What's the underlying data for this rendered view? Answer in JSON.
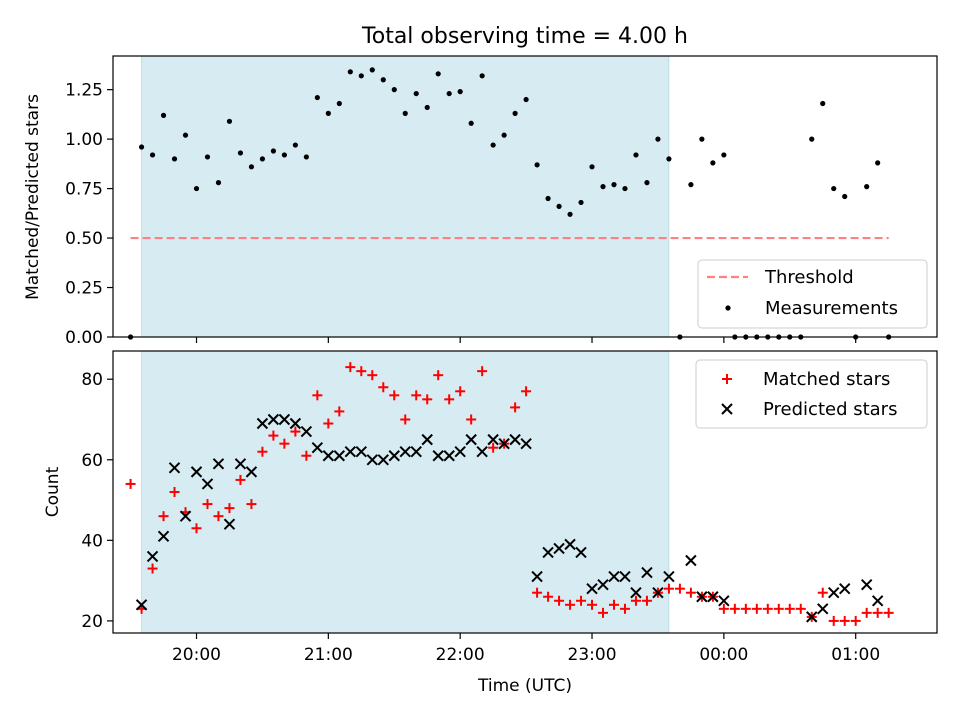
{
  "title": "Total observing time = 4.00 h",
  "chart_data": [
    {
      "panel": "top",
      "type": "scatter",
      "ylabel": "Matched/Predicted stars",
      "ylim": [
        0,
        1.42
      ],
      "xlim": [
        "19:22",
        "01:37"
      ],
      "yticks": [
        0.0,
        0.25,
        0.5,
        0.75,
        1.0,
        1.25
      ],
      "ytick_labels": [
        "0.00",
        "0.25",
        "0.50",
        "0.75",
        "1.00",
        "1.25"
      ],
      "highlight_span": {
        "start": "19:35",
        "end": "23:35",
        "color": "#add8e6"
      },
      "threshold": {
        "name": "Threshold",
        "value": 0.5,
        "x_start": "19:30",
        "x_end": "01:15",
        "color": "#ff8080"
      },
      "legend": {
        "position": "lower right",
        "entries": [
          "Threshold",
          "Measurements"
        ]
      },
      "series": [
        {
          "name": "Measurements",
          "color": "#000000",
          "marker": "dot",
          "points": [
            [
              "19:30",
              0.0
            ],
            [
              "19:35",
              0.96
            ],
            [
              "19:40",
              0.92
            ],
            [
              "19:45",
              1.12
            ],
            [
              "19:50",
              0.9
            ],
            [
              "19:55",
              1.02
            ],
            [
              "20:00",
              0.75
            ],
            [
              "20:05",
              0.91
            ],
            [
              "20:10",
              0.78
            ],
            [
              "20:15",
              1.09
            ],
            [
              "20:20",
              0.93
            ],
            [
              "20:25",
              0.86
            ],
            [
              "20:30",
              0.9
            ],
            [
              "20:35",
              0.94
            ],
            [
              "20:40",
              0.92
            ],
            [
              "20:45",
              0.97
            ],
            [
              "20:50",
              0.91
            ],
            [
              "20:55",
              1.21
            ],
            [
              "21:00",
              1.13
            ],
            [
              "21:05",
              1.18
            ],
            [
              "21:10",
              1.34
            ],
            [
              "21:15",
              1.32
            ],
            [
              "21:20",
              1.35
            ],
            [
              "21:25",
              1.3
            ],
            [
              "21:30",
              1.25
            ],
            [
              "21:35",
              1.13
            ],
            [
              "21:40",
              1.23
            ],
            [
              "21:45",
              1.16
            ],
            [
              "21:50",
              1.33
            ],
            [
              "21:55",
              1.23
            ],
            [
              "22:00",
              1.24
            ],
            [
              "22:05",
              1.08
            ],
            [
              "22:10",
              1.32
            ],
            [
              "22:15",
              0.97
            ],
            [
              "22:20",
              1.02
            ],
            [
              "22:25",
              1.13
            ],
            [
              "22:30",
              1.2
            ],
            [
              "22:35",
              0.87
            ],
            [
              "22:40",
              0.7
            ],
            [
              "22:45",
              0.66
            ],
            [
              "22:50",
              0.62
            ],
            [
              "22:55",
              0.68
            ],
            [
              "23:00",
              0.86
            ],
            [
              "23:05",
              0.76
            ],
            [
              "23:10",
              0.77
            ],
            [
              "23:15",
              0.75
            ],
            [
              "23:20",
              0.92
            ],
            [
              "23:25",
              0.78
            ],
            [
              "23:30",
              1.0
            ],
            [
              "23:35",
              0.9
            ],
            [
              "23:40",
              0.0
            ],
            [
              "23:45",
              0.77
            ],
            [
              "23:50",
              1.0
            ],
            [
              "23:55",
              0.88
            ],
            [
              "00:00",
              0.92
            ],
            [
              "00:05",
              0.0
            ],
            [
              "00:10",
              0.0
            ],
            [
              "00:15",
              0.0
            ],
            [
              "00:20",
              0.0
            ],
            [
              "00:25",
              0.0
            ],
            [
              "00:30",
              0.0
            ],
            [
              "00:35",
              0.0
            ],
            [
              "00:40",
              1.0
            ],
            [
              "00:45",
              1.18
            ],
            [
              "00:50",
              0.75
            ],
            [
              "00:55",
              0.71
            ],
            [
              "01:00",
              0.0
            ],
            [
              "01:05",
              0.76
            ],
            [
              "01:10",
              0.88
            ],
            [
              "01:15",
              0.0
            ]
          ]
        }
      ]
    },
    {
      "panel": "bottom",
      "type": "scatter",
      "xlabel": "Time (UTC)",
      "ylabel": "Count",
      "ylim": [
        17,
        87
      ],
      "xlim": [
        "19:22",
        "01:37"
      ],
      "yticks": [
        20,
        40,
        60,
        80
      ],
      "ytick_labels": [
        "20",
        "40",
        "60",
        "80"
      ],
      "xticks": [
        "20:00",
        "21:00",
        "22:00",
        "23:00",
        "00:00",
        "01:00"
      ],
      "xtick_labels": [
        "20:00",
        "21:00",
        "22:00",
        "23:00",
        "00:00",
        "01:00"
      ],
      "highlight_span": {
        "start": "19:35",
        "end": "23:35",
        "color": "#add8e6"
      },
      "legend": {
        "position": "upper right",
        "entries": [
          "Matched stars",
          "Predicted stars"
        ]
      },
      "series": [
        {
          "name": "Matched stars",
          "color": "#ff0000",
          "marker": "plus",
          "points": [
            [
              "19:30",
              54
            ],
            [
              "19:35",
              23
            ],
            [
              "19:40",
              33
            ],
            [
              "19:45",
              46
            ],
            [
              "19:50",
              52
            ],
            [
              "19:55",
              47
            ],
            [
              "20:00",
              43
            ],
            [
              "20:05",
              49
            ],
            [
              "20:10",
              46
            ],
            [
              "20:15",
              48
            ],
            [
              "20:20",
              55
            ],
            [
              "20:25",
              49
            ],
            [
              "20:30",
              62
            ],
            [
              "20:35",
              66
            ],
            [
              "20:40",
              64
            ],
            [
              "20:45",
              67
            ],
            [
              "20:50",
              61
            ],
            [
              "20:55",
              76
            ],
            [
              "21:00",
              69
            ],
            [
              "21:05",
              72
            ],
            [
              "21:10",
              83
            ],
            [
              "21:15",
              82
            ],
            [
              "21:20",
              81
            ],
            [
              "21:25",
              78
            ],
            [
              "21:30",
              76
            ],
            [
              "21:35",
              70
            ],
            [
              "21:40",
              76
            ],
            [
              "21:45",
              75
            ],
            [
              "21:50",
              81
            ],
            [
              "21:55",
              75
            ],
            [
              "22:00",
              77
            ],
            [
              "22:05",
              70
            ],
            [
              "22:10",
              82
            ],
            [
              "22:15",
              63
            ],
            [
              "22:20",
              64
            ],
            [
              "22:25",
              73
            ],
            [
              "22:30",
              77
            ],
            [
              "22:35",
              27
            ],
            [
              "22:40",
              26
            ],
            [
              "22:45",
              25
            ],
            [
              "22:50",
              24
            ],
            [
              "22:55",
              25
            ],
            [
              "23:00",
              24
            ],
            [
              "23:05",
              22
            ],
            [
              "23:10",
              24
            ],
            [
              "23:15",
              23
            ],
            [
              "23:20",
              25
            ],
            [
              "23:25",
              25
            ],
            [
              "23:30",
              27
            ],
            [
              "23:35",
              28
            ],
            [
              "23:40",
              28
            ],
            [
              "23:45",
              27
            ],
            [
              "23:50",
              26
            ],
            [
              "23:55",
              26
            ],
            [
              "00:00",
              23
            ],
            [
              "00:05",
              23
            ],
            [
              "00:10",
              23
            ],
            [
              "00:15",
              23
            ],
            [
              "00:20",
              23
            ],
            [
              "00:25",
              23
            ],
            [
              "00:30",
              23
            ],
            [
              "00:35",
              23
            ],
            [
              "00:40",
              21
            ],
            [
              "00:45",
              27
            ],
            [
              "00:50",
              20
            ],
            [
              "00:55",
              20
            ],
            [
              "01:00",
              20
            ],
            [
              "01:05",
              22
            ],
            [
              "01:10",
              22
            ],
            [
              "01:15",
              22
            ]
          ]
        },
        {
          "name": "Predicted stars",
          "color": "#000000",
          "marker": "x",
          "points": [
            [
              "19:35",
              24
            ],
            [
              "19:40",
              36
            ],
            [
              "19:45",
              41
            ],
            [
              "19:50",
              58
            ],
            [
              "19:55",
              46
            ],
            [
              "20:00",
              57
            ],
            [
              "20:05",
              54
            ],
            [
              "20:10",
              59
            ],
            [
              "20:15",
              44
            ],
            [
              "20:20",
              59
            ],
            [
              "20:25",
              57
            ],
            [
              "20:30",
              69
            ],
            [
              "20:35",
              70
            ],
            [
              "20:40",
              70
            ],
            [
              "20:45",
              69
            ],
            [
              "20:50",
              67
            ],
            [
              "20:55",
              63
            ],
            [
              "21:00",
              61
            ],
            [
              "21:05",
              61
            ],
            [
              "21:10",
              62
            ],
            [
              "21:15",
              62
            ],
            [
              "21:20",
              60
            ],
            [
              "21:25",
              60
            ],
            [
              "21:30",
              61
            ],
            [
              "21:35",
              62
            ],
            [
              "21:40",
              62
            ],
            [
              "21:45",
              65
            ],
            [
              "21:50",
              61
            ],
            [
              "21:55",
              61
            ],
            [
              "22:00",
              62
            ],
            [
              "22:05",
              65
            ],
            [
              "22:10",
              62
            ],
            [
              "22:15",
              65
            ],
            [
              "22:20",
              64
            ],
            [
              "22:25",
              65
            ],
            [
              "22:30",
              64
            ],
            [
              "22:35",
              31
            ],
            [
              "22:40",
              37
            ],
            [
              "22:45",
              38
            ],
            [
              "22:50",
              39
            ],
            [
              "22:55",
              37
            ],
            [
              "23:00",
              28
            ],
            [
              "23:05",
              29
            ],
            [
              "23:10",
              31
            ],
            [
              "23:15",
              31
            ],
            [
              "23:20",
              27
            ],
            [
              "23:25",
              32
            ],
            [
              "23:30",
              27
            ],
            [
              "23:35",
              31
            ],
            [
              "23:45",
              35
            ],
            [
              "23:50",
              26
            ],
            [
              "23:55",
              26
            ],
            [
              "00:00",
              25
            ],
            [
              "00:40",
              21
            ],
            [
              "00:45",
              23
            ],
            [
              "00:50",
              27
            ],
            [
              "00:55",
              28
            ],
            [
              "01:05",
              29
            ],
            [
              "01:10",
              25
            ]
          ]
        }
      ]
    }
  ]
}
